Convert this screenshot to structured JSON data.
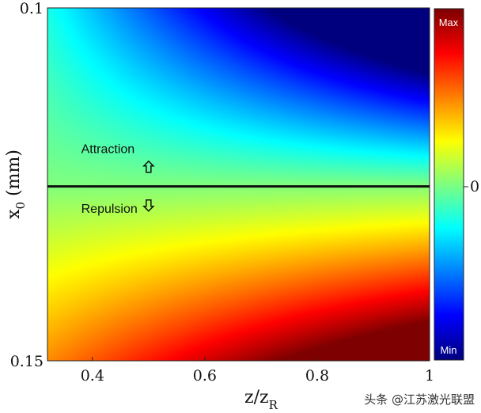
{
  "chart_data": {
    "type": "heatmap",
    "xlabel_main": "z/z",
    "xlabel_sub": "R",
    "ylabel_main": "x",
    "ylabel_sub": "0",
    "ylabel_unit": " (mm)",
    "xlim": [
      0.32,
      1.0
    ],
    "ylim": [
      0.1,
      0.15
    ],
    "y_reversed": true,
    "x_ticks": [
      {
        "value": 0.4,
        "label": "0.4"
      },
      {
        "value": 0.6,
        "label": "0.6"
      },
      {
        "value": 0.8,
        "label": "0.8"
      },
      {
        "value": 1.0,
        "label": "1"
      }
    ],
    "y_ticks": [
      {
        "value": 0.1,
        "label": "0.1"
      },
      {
        "value": 0.15,
        "label": "0.15"
      }
    ],
    "divider_y": 0.1253,
    "annotations": [
      {
        "text": "Attraction",
        "x": 0.38,
        "y": 0.12
      },
      {
        "text": "Repulsion",
        "x": 0.38,
        "y": 0.1285
      }
    ],
    "arrows": [
      {
        "direction": "up",
        "x": 0.5,
        "y": 0.1225
      },
      {
        "direction": "down",
        "x": 0.5,
        "y": 0.128
      }
    ],
    "colorbar": {
      "colormap": "jet",
      "max_label": "Max",
      "mid_label": "0",
      "min_label": "Min"
    },
    "colors": [
      "#00007f",
      "#0000ff",
      "#007fff",
      "#00ffff",
      "#7fff7f",
      "#ffff00",
      "#ff7f00",
      "#ff0000",
      "#7f0000"
    ]
  },
  "watermark": "头条 @江苏激光联盟"
}
